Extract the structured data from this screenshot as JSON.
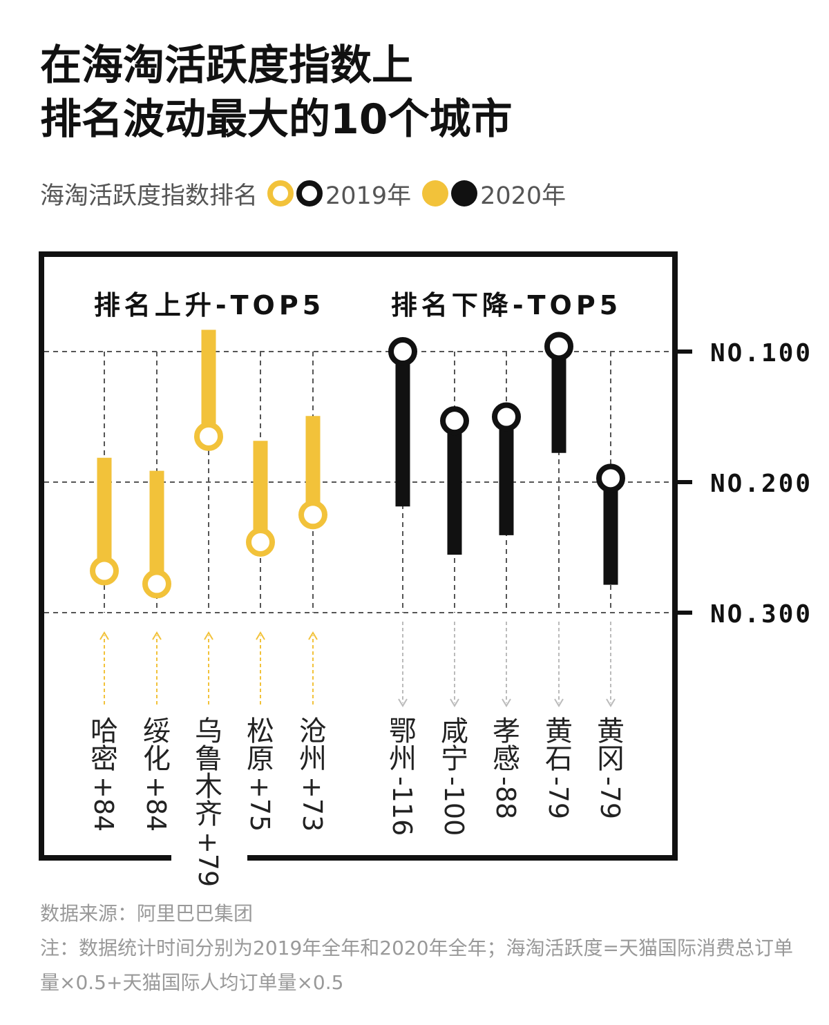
{
  "title": {
    "line1": "在海淘活跃度指数上",
    "line2": "排名波动最大的10个城市"
  },
  "legend": {
    "caption": "海淘活跃度指数排名",
    "year_2019": "2019年",
    "year_2020": "2020年"
  },
  "colors": {
    "rise": "#f2c23a",
    "fall": "#111111",
    "grid": "#555555",
    "rise_arrow": "#f2c23a",
    "fall_arrow": "#bbbbbb"
  },
  "chart_data": {
    "type": "dumbbell",
    "y_axis": {
      "label_prefix": "NO.",
      "ticks": [
        "NO.100",
        "NO.200",
        "NO.300"
      ],
      "reversed": true
    },
    "groups": [
      {
        "title": "排名上升-TOP5",
        "direction": "rise"
      },
      {
        "title": "排名下降-TOP5",
        "direction": "fall"
      }
    ],
    "cities": [
      {
        "name": "哈密",
        "change": "+84",
        "rank_2019": 268,
        "rank_2020": 184,
        "group": "rise"
      },
      {
        "name": "绥化",
        "change": "+84",
        "rank_2019": 278,
        "rank_2020": 194,
        "group": "rise"
      },
      {
        "name": "乌鲁木齐",
        "change": "+79",
        "rank_2019": 165,
        "rank_2020": 86,
        "group": "rise"
      },
      {
        "name": "松原",
        "change": "+75",
        "rank_2019": 246,
        "rank_2020": 171,
        "group": "rise"
      },
      {
        "name": "沧州",
        "change": "+73",
        "rank_2019": 225,
        "rank_2020": 152,
        "group": "rise"
      },
      {
        "name": "鄂州",
        "change": "-116",
        "rank_2019": 100,
        "rank_2020": 216,
        "group": "fall"
      },
      {
        "name": "咸宁",
        "change": "-100",
        "rank_2019": 153,
        "rank_2020": 253,
        "group": "fall"
      },
      {
        "name": "孝感",
        "change": "-88",
        "rank_2019": 150,
        "rank_2020": 238,
        "group": "fall"
      },
      {
        "name": "黄石",
        "change": "-79",
        "rank_2019": 96,
        "rank_2020": 175,
        "group": "fall"
      },
      {
        "name": "黄冈",
        "change": "-79",
        "rank_2019": 197,
        "rank_2020": 276,
        "group": "fall"
      }
    ]
  },
  "footer": {
    "source": "数据来源：阿里巴巴集团",
    "note": "注：数据统计时间分别为2019年全年和2020年全年；海淘活跃度=天猫国际消费总订单量×0.5+天猫国际人均订单量×0.5"
  }
}
